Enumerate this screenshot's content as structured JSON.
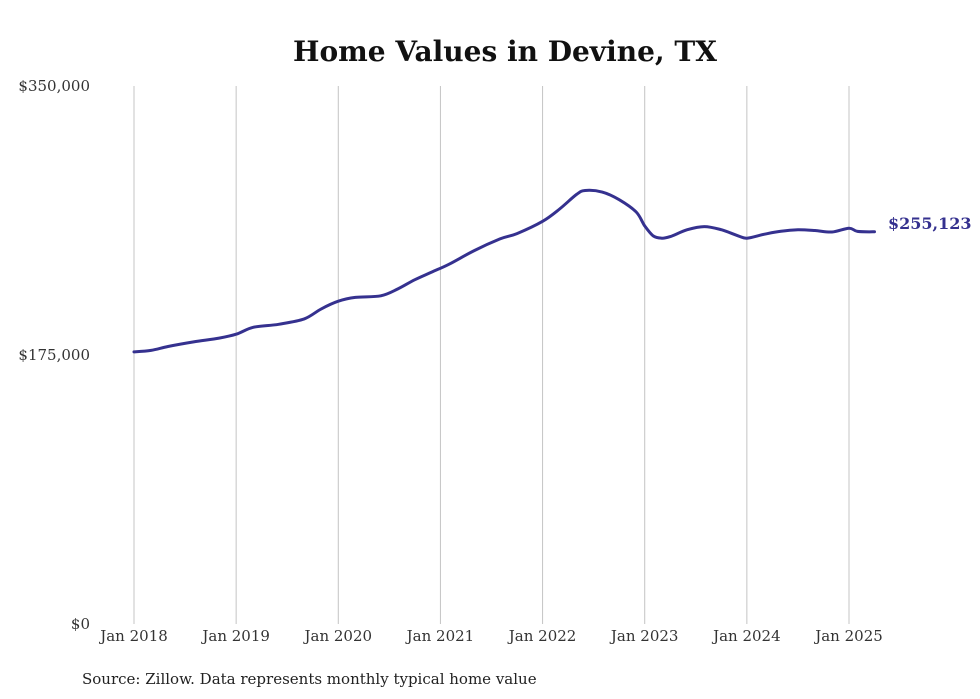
{
  "chart_data": {
    "type": "line",
    "title": "Home Values in Devine, TX",
    "source": "Source: Zillow. Data represents monthly typical home value",
    "xlabel": "",
    "ylabel": "",
    "ylim": [
      0,
      350000
    ],
    "y_ticks": [
      {
        "value": 0,
        "label": "$0"
      },
      {
        "value": 175000,
        "label": "$175,000"
      },
      {
        "value": 350000,
        "label": "$350,000"
      }
    ],
    "x_ticks": [
      {
        "value": 2018,
        "label": "Jan 2018"
      },
      {
        "value": 2019,
        "label": "Jan 2019"
      },
      {
        "value": 2020,
        "label": "Jan 2020"
      },
      {
        "value": 2021,
        "label": "Jan 2021"
      },
      {
        "value": 2022,
        "label": "Jan 2022"
      },
      {
        "value": 2023,
        "label": "Jan 2023"
      },
      {
        "value": 2024,
        "label": "Jan 2024"
      },
      {
        "value": 2025,
        "label": "Jan 2025"
      }
    ],
    "grid": "vertical",
    "end_label": "$255,123",
    "color": "#35318f",
    "series": [
      {
        "x": [
          "2018-01",
          "2018-03",
          "2018-05",
          "2018-08",
          "2018-11",
          "2019-01",
          "2019-03",
          "2019-06",
          "2019-09",
          "2019-11",
          "2020-01",
          "2020-03",
          "2020-06",
          "2020-08",
          "2020-10",
          "2020-12",
          "2021-02",
          "2021-05",
          "2021-08",
          "2021-10",
          "2022-01",
          "2022-03",
          "2022-05",
          "2022-06",
          "2022-08",
          "2022-10",
          "2022-12",
          "2023-01",
          "2023-02",
          "2023-03",
          "2023-04",
          "2023-06",
          "2023-08",
          "2023-10",
          "2023-12",
          "2024-01",
          "2024-03",
          "2024-05",
          "2024-07",
          "2024-09",
          "2024-11",
          "2025-01",
          "2025-02",
          "2025-04"
        ],
        "values": [
          177000,
          178000,
          180500,
          183500,
          186000,
          188500,
          193000,
          195000,
          198500,
          205000,
          210000,
          212500,
          213500,
          218000,
          224000,
          229000,
          234000,
          243000,
          250500,
          254000,
          262000,
          270000,
          279500,
          282000,
          281000,
          276000,
          268000,
          259000,
          252500,
          251000,
          252000,
          256500,
          258500,
          256500,
          252500,
          251000,
          253500,
          255500,
          256500,
          256000,
          255000,
          257500,
          255400,
          255123
        ]
      }
    ]
  }
}
